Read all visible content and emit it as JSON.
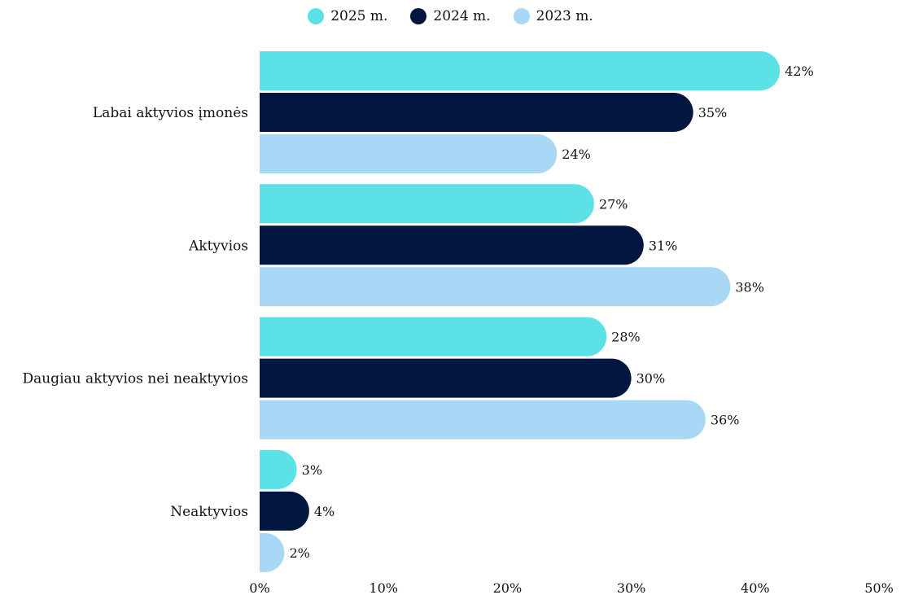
{
  "chart_data": {
    "type": "bar",
    "orientation": "horizontal",
    "categories": [
      "Labai aktyvios įmonės",
      "Aktyvios",
      "Daugiau aktyvios nei neaktyvios",
      "Neaktyvios"
    ],
    "series": [
      {
        "name": "2025 m.",
        "color": "#5ce1e6",
        "values": [
          42,
          27,
          28,
          3
        ]
      },
      {
        "name": "2024 m.",
        "color": "#03163f",
        "values": [
          35,
          31,
          30,
          4
        ]
      },
      {
        "name": "2023 m.",
        "color": "#a8d8f5",
        "values": [
          24,
          38,
          36,
          2
        ]
      }
    ],
    "xlim": [
      0,
      50
    ],
    "xticks": [
      0,
      10,
      20,
      30,
      40,
      50
    ],
    "tick_suffix": "%",
    "value_suffix": "%",
    "legend_position": "top-center",
    "grid": false
  }
}
